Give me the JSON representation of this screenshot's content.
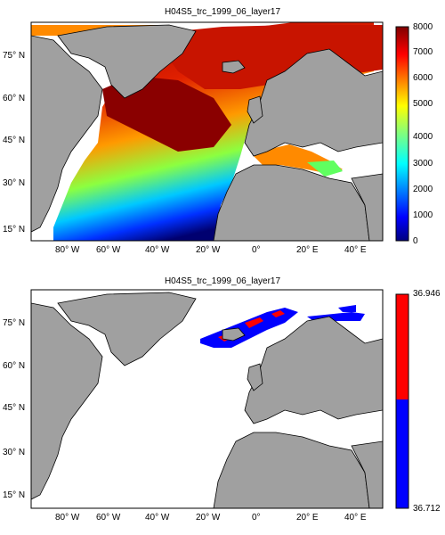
{
  "panels": [
    {
      "title": "H04S5_trc_1999_06_layer17",
      "colorbar": {
        "type": "jet",
        "ticks": [
          "8000",
          "7000",
          "6000",
          "5000",
          "4000",
          "3000",
          "2000",
          "1000",
          "0"
        ]
      },
      "lat_labels": [
        "75° N",
        "60° N",
        "45° N",
        "30° N",
        "15° N"
      ],
      "lon_labels": [
        "80° W",
        "60° W",
        "40° W",
        "20° W",
        "0°",
        "20° E",
        "40° E"
      ]
    },
    {
      "title": "H04S5_trc_1999_06_layer17",
      "colorbar": {
        "type": "two-color",
        "colors": [
          "#ff0000",
          "#0000ff"
        ],
        "ticks": [
          "36.946",
          "36.712"
        ]
      },
      "lat_labels": [
        "75° N",
        "60° N",
        "45° N",
        "30° N",
        "15° N"
      ],
      "lon_labels": [
        "80° W",
        "60° W",
        "40° W",
        "20° W",
        "0°",
        "20° E",
        "40° E"
      ]
    }
  ],
  "colors": {
    "land": "#a0a0a0",
    "no_data": "#ffffff",
    "coast": "#000000"
  }
}
